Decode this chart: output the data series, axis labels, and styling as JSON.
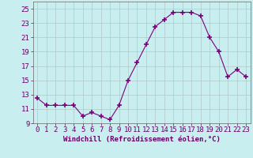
{
  "x": [
    0,
    1,
    2,
    3,
    4,
    5,
    6,
    7,
    8,
    9,
    10,
    11,
    12,
    13,
    14,
    15,
    16,
    17,
    18,
    19,
    20,
    21,
    22,
    23
  ],
  "y": [
    12.5,
    11.5,
    11.5,
    11.5,
    11.5,
    10.0,
    10.5,
    10.0,
    9.5,
    11.5,
    15.0,
    17.5,
    20.0,
    22.5,
    23.5,
    24.5,
    24.5,
    24.5,
    24.0,
    21.0,
    19.0,
    15.5,
    16.5,
    15.5
  ],
  "line_color": "#7B0080",
  "marker": "+",
  "marker_size": 4,
  "bg_color": "#c8eef0",
  "grid_color": "#b0c8c8",
  "xlabel": "Windchill (Refroidissement éolien,°C)",
  "xlim": [
    -0.5,
    23.5
  ],
  "ylim": [
    9,
    26
  ],
  "yticks": [
    9,
    11,
    13,
    15,
    17,
    19,
    21,
    23,
    25
  ],
  "xticks": [
    0,
    1,
    2,
    3,
    4,
    5,
    6,
    7,
    8,
    9,
    10,
    11,
    12,
    13,
    14,
    15,
    16,
    17,
    18,
    19,
    20,
    21,
    22,
    23
  ],
  "xlabel_fontsize": 6.5,
  "tick_fontsize": 6.5,
  "text_color": "#660066"
}
